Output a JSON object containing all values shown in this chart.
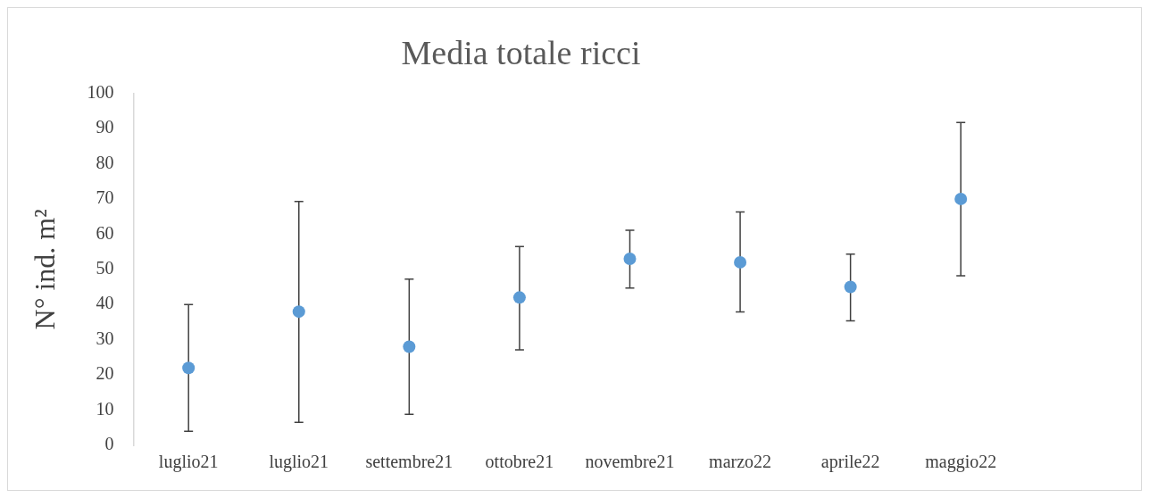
{
  "chart_data": {
    "type": "scatter",
    "title": "Media totale ricci",
    "ylabel": "N° ind. m²",
    "categories": [
      "luglio21",
      "luglio21",
      "settembre21",
      "ottobre21",
      "novembre21",
      "marzo22",
      "aprile22",
      "maggio22"
    ],
    "series": [
      {
        "color": "#5b9bd5",
        "values": [
          22,
          38,
          28,
          42,
          53,
          52,
          45,
          70
        ],
        "errors": [
          [
            4,
            40
          ],
          [
            6.5,
            69.3
          ],
          [
            8.8,
            47.2
          ],
          [
            27.1,
            56.5
          ],
          [
            44.7,
            61.1
          ],
          [
            37.9,
            66.3
          ],
          [
            35.4,
            54.3
          ],
          [
            48.2,
            91.7
          ]
        ]
      }
    ],
    "ylim": [
      0,
      100
    ],
    "yticks": [
      0,
      10,
      20,
      30,
      40,
      50,
      60,
      70,
      80,
      90,
      100
    ],
    "grid": false,
    "legend": false,
    "marker": "circle"
  }
}
